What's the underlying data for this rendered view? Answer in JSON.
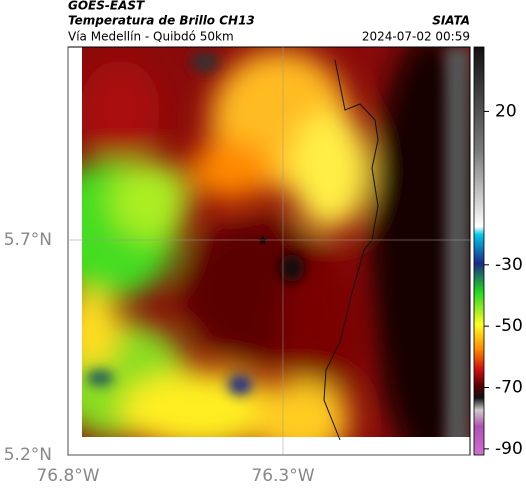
{
  "header": {
    "satellite": "GOES-EAST",
    "product": "Temperatura de Brillo CH13",
    "source": "SIATA",
    "region": "Vía Medellín - Quibdó 50km",
    "timestamp": "2024-07-02 00:59"
  },
  "map": {
    "xlim": [
      -76.8,
      -75.865
    ],
    "ylim": [
      5.2,
      6.149
    ],
    "xticks": [
      {
        "value": -76.8,
        "label": "76.8°W"
      },
      {
        "value": -76.3,
        "label": "76.3°W"
      }
    ],
    "yticks": [
      {
        "value": 5.7,
        "label": "5.7°N"
      },
      {
        "value": 5.2,
        "label": "5.2°N"
      }
    ],
    "grid": true
  },
  "colorbar": {
    "lim": [
      -92,
      41
    ],
    "ticks": [
      20,
      -30,
      -50,
      -70,
      -90
    ]
  }
}
